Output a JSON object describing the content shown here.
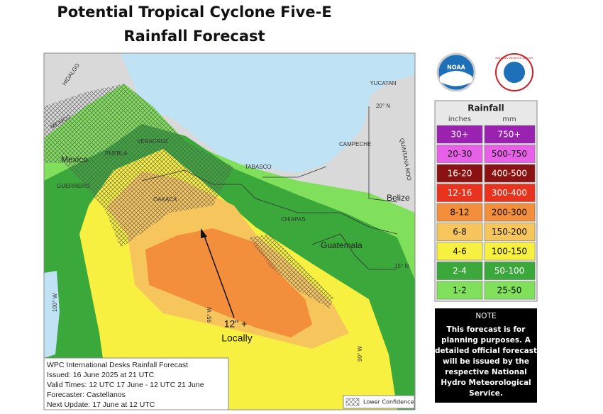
{
  "header": {
    "title_line1": "Potential Tropical Cyclone Five-E",
    "title_line2": "Rainfall Forecast"
  },
  "logos": {
    "noaa": "NOAA",
    "nws": "NATIONAL WEATHER SERVICE"
  },
  "map": {
    "labels": [
      "YUCATAN",
      "20° N",
      "HIDALGO",
      "MEXICO",
      "VERACRUZ",
      "PUEBLA",
      "Mexico",
      "CAMPECHE",
      "QUINTANA ROO",
      "TABASCO",
      "GUERRERO",
      "OAXACA",
      "Belize",
      "CHIAPAS",
      "Guatemala",
      "15° N",
      "100° W",
      "95° W",
      "90° W"
    ]
  },
  "annotation": {
    "line1": "12\" +",
    "line2": "Locally"
  },
  "info": {
    "lines": [
      "WPC International Desks Rainfall Forecast",
      "Issued: 16 June 2025 at 21 UTC",
      "Valid Times: 12 UTC 17 June - 12 UTC 21 June",
      "Forecaster: Castellanos",
      "Next Update: 17 June at 12 UTC"
    ]
  },
  "hatch_legend": "Lower Confidence",
  "legend": {
    "title": "Rainfall",
    "units": [
      "inches",
      "mm"
    ],
    "rows": [
      {
        "inches": "30+",
        "mm": "750+",
        "color": "#9b22b0"
      },
      {
        "inches": "20-30",
        "mm": "500-750",
        "color": "#e860e8"
      },
      {
        "inches": "16-20",
        "mm": "400-500",
        "color": "#8a1212"
      },
      {
        "inches": "12-16",
        "mm": "300-400",
        "color": "#e8341f"
      },
      {
        "inches": "8-12",
        "mm": "200-300",
        "color": "#f28e3c"
      },
      {
        "inches": "6-8",
        "mm": "150-200",
        "color": "#f6c65c"
      },
      {
        "inches": "4-6",
        "mm": "100-150",
        "color": "#f8f040"
      },
      {
        "inches": "2-4",
        "mm": "50-100",
        "color": "#3ba83b"
      },
      {
        "inches": "1-2",
        "mm": "25-50",
        "color": "#80e05c"
      }
    ]
  },
  "note": {
    "title": "NOTE",
    "lines": [
      "This forecast is for",
      "planning purposes. A",
      "detailed official forecast",
      "will be issued by the",
      "respective National",
      "Hydro Meteorological",
      "Service."
    ]
  }
}
